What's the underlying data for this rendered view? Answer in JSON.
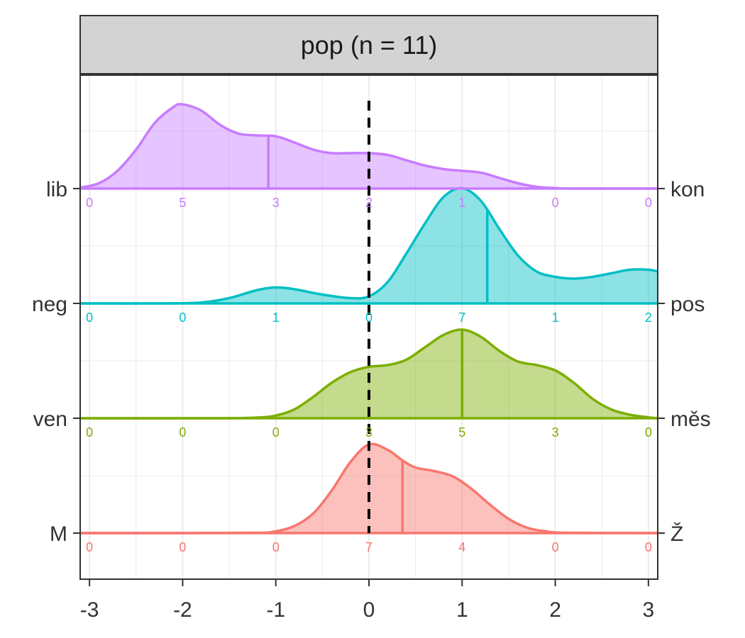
{
  "chart_data": {
    "type": "ridgeline-density",
    "title": "pop (n = 11)",
    "xlabel": "",
    "ylabel": "",
    "xlim": [
      -3.1,
      3.1
    ],
    "x_ticks": [
      -3,
      -2,
      -1,
      0,
      1,
      2,
      3
    ],
    "x_tick_labels": [
      "-3",
      "-2",
      "-1",
      "0",
      "1",
      "2",
      "3"
    ],
    "reference_line_x": 0,
    "count_positions": [
      -3,
      -2,
      -1,
      0,
      1,
      2,
      3
    ],
    "grid": true,
    "series": [
      {
        "left_label": "M",
        "right_label": "Ž",
        "color": "#F8766D",
        "mean": 0.36,
        "counts": [
          "0",
          "0",
          "0",
          "7",
          "4",
          "0",
          "0"
        ],
        "counts_numeric": [
          0,
          0,
          0,
          7,
          4,
          0,
          0
        ],
        "density": [
          [
            -3.1,
            0
          ],
          [
            -2,
            0
          ],
          [
            -1.2,
            0.002
          ],
          [
            -1,
            0.01
          ],
          [
            -0.8,
            0.04
          ],
          [
            -0.6,
            0.11
          ],
          [
            -0.4,
            0.24
          ],
          [
            -0.2,
            0.4
          ],
          [
            0,
            0.5
          ],
          [
            0.2,
            0.47
          ],
          [
            0.36,
            0.41
          ],
          [
            0.5,
            0.37
          ],
          [
            0.7,
            0.35
          ],
          [
            0.9,
            0.32
          ],
          [
            1.1,
            0.25
          ],
          [
            1.3,
            0.16
          ],
          [
            1.5,
            0.08
          ],
          [
            1.7,
            0.03
          ],
          [
            1.9,
            0.01
          ],
          [
            2.1,
            0.002
          ],
          [
            3.1,
            0
          ]
        ]
      },
      {
        "left_label": "ven",
        "right_label": "měs",
        "color": "#7CAE00",
        "mean": 1.0,
        "counts": [
          "0",
          "0",
          "0",
          "3",
          "5",
          "3",
          "0"
        ],
        "counts_numeric": [
          0,
          0,
          0,
          3,
          5,
          3,
          0
        ],
        "density": [
          [
            -3.1,
            0
          ],
          [
            -1.6,
            0
          ],
          [
            -1.2,
            0.004
          ],
          [
            -1,
            0.015
          ],
          [
            -0.8,
            0.05
          ],
          [
            -0.6,
            0.12
          ],
          [
            -0.4,
            0.2
          ],
          [
            -0.2,
            0.26
          ],
          [
            0,
            0.29
          ],
          [
            0.2,
            0.3
          ],
          [
            0.4,
            0.33
          ],
          [
            0.6,
            0.4
          ],
          [
            0.8,
            0.47
          ],
          [
            1,
            0.5
          ],
          [
            1.2,
            0.46
          ],
          [
            1.4,
            0.38
          ],
          [
            1.6,
            0.32
          ],
          [
            1.8,
            0.3
          ],
          [
            2,
            0.27
          ],
          [
            2.2,
            0.2
          ],
          [
            2.4,
            0.11
          ],
          [
            2.6,
            0.05
          ],
          [
            2.8,
            0.02
          ],
          [
            3,
            0.005
          ],
          [
            3.1,
            0
          ]
        ]
      },
      {
        "left_label": "neg",
        "right_label": "pos",
        "color": "#00BFC4",
        "mean": 1.27,
        "counts": [
          "0",
          "0",
          "1",
          "0",
          "7",
          "1",
          "2"
        ],
        "counts_numeric": [
          0,
          0,
          1,
          0,
          7,
          1,
          2
        ],
        "density": [
          [
            -3.1,
            0
          ],
          [
            -2.2,
            0
          ],
          [
            -1.8,
            0.005
          ],
          [
            -1.5,
            0.03
          ],
          [
            -1.2,
            0.075
          ],
          [
            -1,
            0.09
          ],
          [
            -0.8,
            0.08
          ],
          [
            -0.5,
            0.05
          ],
          [
            -0.2,
            0.03
          ],
          [
            0,
            0.04
          ],
          [
            0.2,
            0.12
          ],
          [
            0.4,
            0.28
          ],
          [
            0.6,
            0.45
          ],
          [
            0.8,
            0.6
          ],
          [
            1,
            0.65
          ],
          [
            1.2,
            0.58
          ],
          [
            1.4,
            0.42
          ],
          [
            1.6,
            0.27
          ],
          [
            1.8,
            0.18
          ],
          [
            2,
            0.15
          ],
          [
            2.2,
            0.14
          ],
          [
            2.4,
            0.15
          ],
          [
            2.6,
            0.17
          ],
          [
            2.8,
            0.19
          ],
          [
            3,
            0.19
          ],
          [
            3.1,
            0.18
          ]
        ]
      },
      {
        "left_label": "lib",
        "right_label": "kon",
        "color": "#C77CFF",
        "mean": -1.08,
        "counts": [
          "0",
          "5",
          "3",
          "2",
          "1",
          "0",
          "0"
        ],
        "counts_numeric": [
          0,
          5,
          3,
          2,
          1,
          0,
          0
        ],
        "density": [
          [
            -3.1,
            0.005
          ],
          [
            -2.9,
            0.03
          ],
          [
            -2.7,
            0.1
          ],
          [
            -2.5,
            0.22
          ],
          [
            -2.3,
            0.37
          ],
          [
            -2.1,
            0.46
          ],
          [
            -2,
            0.475
          ],
          [
            -1.8,
            0.44
          ],
          [
            -1.6,
            0.36
          ],
          [
            -1.4,
            0.31
          ],
          [
            -1.2,
            0.3
          ],
          [
            -1,
            0.295
          ],
          [
            -0.8,
            0.26
          ],
          [
            -0.6,
            0.22
          ],
          [
            -0.4,
            0.2
          ],
          [
            -0.2,
            0.2
          ],
          [
            0,
            0.2
          ],
          [
            0.2,
            0.19
          ],
          [
            0.4,
            0.16
          ],
          [
            0.6,
            0.13
          ],
          [
            0.8,
            0.11
          ],
          [
            1,
            0.1
          ],
          [
            1.2,
            0.09
          ],
          [
            1.4,
            0.06
          ],
          [
            1.6,
            0.03
          ],
          [
            1.8,
            0.01
          ],
          [
            2,
            0.003
          ],
          [
            2.2,
            0
          ],
          [
            3.1,
            0
          ]
        ]
      }
    ]
  }
}
